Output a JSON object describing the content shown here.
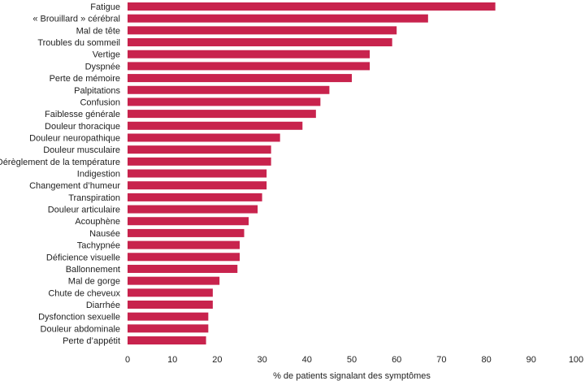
{
  "chart_data": {
    "type": "bar",
    "orientation": "horizontal",
    "title": "",
    "xlabel": "% de patients signalant des symptômes",
    "ylabel": "",
    "xlim": [
      0,
      100
    ],
    "xticks": [
      0,
      10,
      20,
      30,
      40,
      50,
      60,
      70,
      80,
      90,
      100
    ],
    "grid": false,
    "legend": "none",
    "bar_color": "#c8234d",
    "categories": [
      "Fatigue",
      "« Brouillard » cérébral",
      "Mal de tête",
      "Troubles du sommeil",
      "Vertige",
      "Dyspnée",
      "Perte de mémoire",
      "Palpitations",
      "Confusion",
      "Faiblesse générale",
      "Douleur thoracique",
      "Douleur neuropathique",
      "Douleur musculaire",
      "Dérèglement de la température",
      "Indigestion",
      "Changement d’humeur",
      "Transpiration",
      "Douleur articulaire",
      "Acouphène",
      "Nausée",
      "Tachypnée",
      "Déficience visuelle",
      "Ballonnement",
      "Mal de gorge",
      "Chute de cheveux",
      "Diarrhée",
      "Dysfonction sexuelle",
      "Douleur abdominale",
      "Perte d’appétit"
    ],
    "values": [
      82,
      67,
      60,
      59,
      54,
      54,
      50,
      45,
      43,
      42,
      39,
      34,
      32,
      32,
      31,
      31,
      30,
      29,
      27,
      26,
      25,
      25,
      24.5,
      20.5,
      19,
      19,
      18,
      18,
      17.5
    ]
  }
}
